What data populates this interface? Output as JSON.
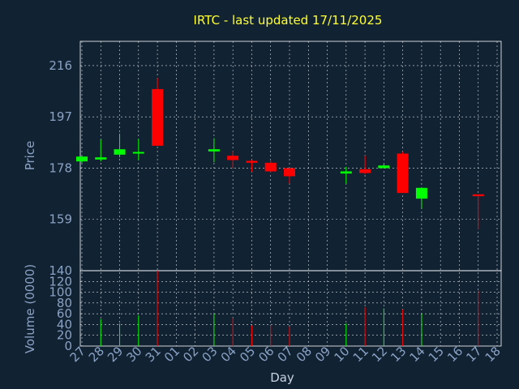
{
  "chart_data": {
    "type": "candlestick",
    "title": "IRTC - last updated 17/11/2025",
    "xlabel": "Day",
    "ylabel_price": "Price",
    "ylabel_volume": "Volume (0000)",
    "x_ticks": [
      "27",
      "28",
      "29",
      "30",
      "31",
      "01",
      "02",
      "03",
      "04",
      "05",
      "06",
      "07",
      "08",
      "09",
      "10",
      "11",
      "12",
      "13",
      "14",
      "15",
      "16",
      "17",
      "18"
    ],
    "price_ticks": [
      "216",
      "197",
      "178",
      "159",
      "140"
    ],
    "price_ylim": [
      140,
      225
    ],
    "volume_ticks": [
      "0",
      "20",
      "40",
      "60",
      "80",
      "100",
      "120"
    ],
    "volume_ylim": [
      0,
      140
    ],
    "colors": {
      "up": "#00ff00",
      "down": "#ff0000",
      "background": "#112233",
      "grid": "#ffffff",
      "title": "#ffff33",
      "axis_text": "#8aa2c4"
    },
    "candles": [
      {
        "day": "27",
        "open": 180.5,
        "close": 182.3,
        "high": 182.3,
        "low": 180.0,
        "volume": 0
      },
      {
        "day": "28",
        "open": 181.2,
        "close": 182.0,
        "high": 188.6,
        "low": 180.5,
        "volume": 50
      },
      {
        "day": "29",
        "open": 183.0,
        "close": 185.0,
        "high": 190.8,
        "low": 182.0,
        "volume": 42
      },
      {
        "day": "30",
        "open": 183.6,
        "close": 184.0,
        "high": 188.8,
        "low": 181.0,
        "volume": 57
      },
      {
        "day": "31",
        "open": 207.3,
        "close": 186.3,
        "high": 211.4,
        "low": 186.3,
        "volume": 140
      },
      {
        "day": "03",
        "open": 184.2,
        "close": 185.0,
        "high": 189.1,
        "low": 180.2,
        "volume": 60
      },
      {
        "day": "04",
        "open": 182.6,
        "close": 181.0,
        "high": 184.3,
        "low": 178.0,
        "volume": 52
      },
      {
        "day": "05",
        "open": 180.7,
        "close": 180.0,
        "high": 181.0,
        "low": 176.7,
        "volume": 38
      },
      {
        "day": "06",
        "open": 180.0,
        "close": 176.8,
        "high": 181.0,
        "low": 176.3,
        "volume": 38
      },
      {
        "day": "07",
        "open": 178.0,
        "close": 175.0,
        "high": 178.0,
        "low": 172.3,
        "volume": 36
      },
      {
        "day": "10",
        "open": 176.0,
        "close": 176.8,
        "high": 178.5,
        "low": 172.3,
        "volume": 42
      },
      {
        "day": "11",
        "open": 177.6,
        "close": 176.2,
        "high": 182.6,
        "low": 175.8,
        "volume": 72
      },
      {
        "day": "12",
        "open": 178.0,
        "close": 179.0,
        "high": 179.5,
        "low": 178.0,
        "volume": 70
      },
      {
        "day": "13",
        "open": 183.4,
        "close": 168.8,
        "high": 184.1,
        "low": 168.8,
        "volume": 68
      },
      {
        "day": "14",
        "open": 166.7,
        "close": 170.7,
        "high": 170.7,
        "low": 163.0,
        "volume": 60
      },
      {
        "day": "17",
        "open": 168.3,
        "close": 167.6,
        "high": 168.3,
        "low": 155.3,
        "volume": 103
      }
    ]
  }
}
